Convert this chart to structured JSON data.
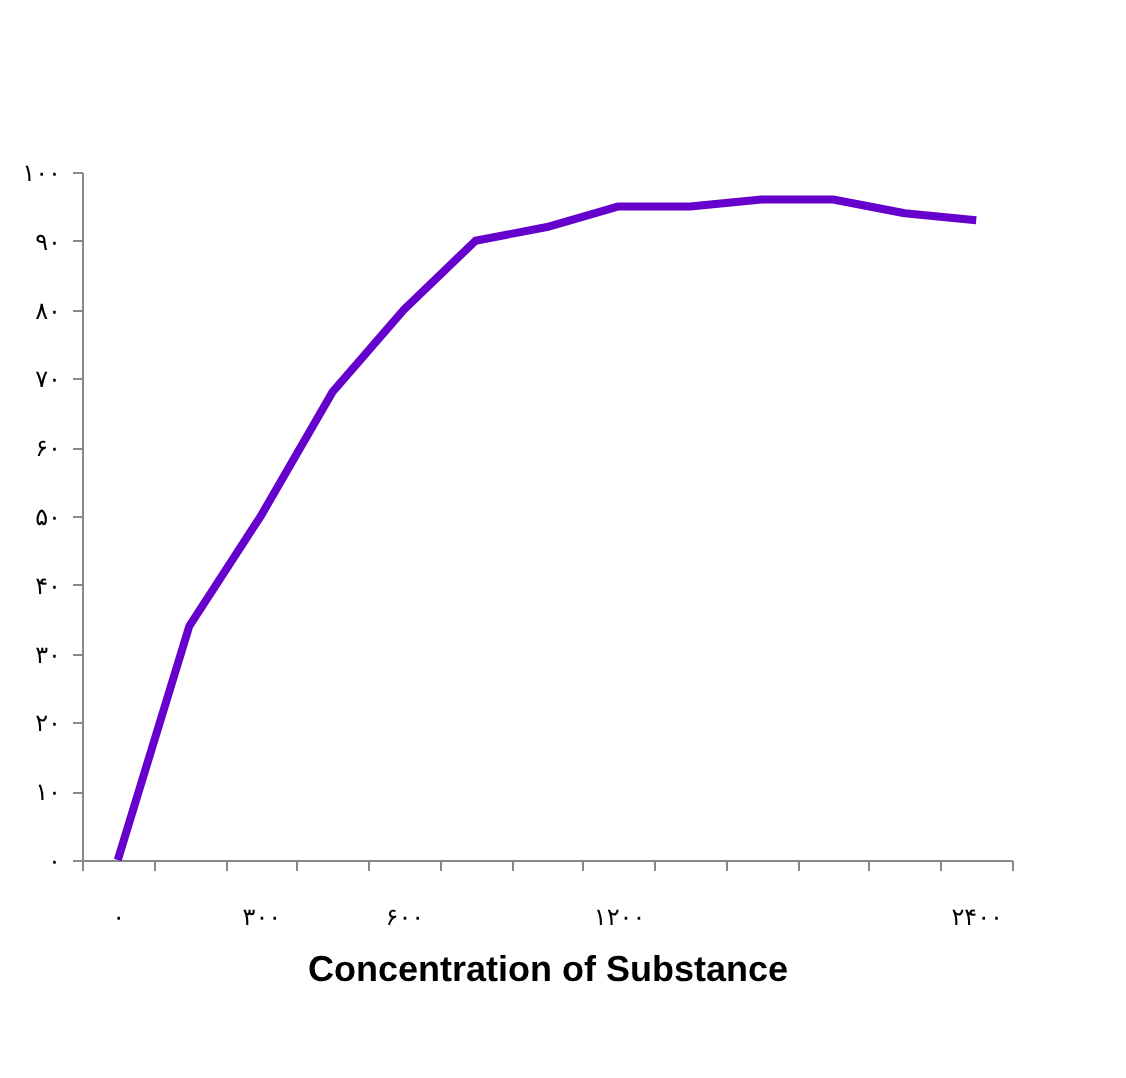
{
  "chart_data": {
    "type": "line",
    "xlabel": "Concentration of Substance",
    "categories": [
      "۰",
      null,
      "۳۰۰",
      null,
      "۶۰۰",
      null,
      null,
      "۱۲۰۰",
      null,
      null,
      null,
      null,
      "۲۴۰۰"
    ],
    "series": [
      {
        "color": "#6600cc",
        "values": [
          0,
          34,
          50,
          68,
          80,
          90,
          92,
          95,
          95,
          96,
          96,
          94,
          93
        ]
      }
    ],
    "ylim": [
      0,
      100
    ],
    "yticks": [
      {
        "value": 0,
        "label": "۰"
      },
      {
        "value": 10,
        "label": "۱۰"
      },
      {
        "value": 20,
        "label": "۲۰"
      },
      {
        "value": 30,
        "label": "۳۰"
      },
      {
        "value": 40,
        "label": "۴۰"
      },
      {
        "value": 50,
        "label": "۵۰"
      },
      {
        "value": 60,
        "label": "۶۰"
      },
      {
        "value": 70,
        "label": "۷۰"
      },
      {
        "value": 80,
        "label": "۸۰"
      },
      {
        "value": 90,
        "label": "۹۰"
      },
      {
        "value": 100,
        "label": "۱۰۰"
      }
    ],
    "grid": false,
    "marker": "none",
    "line_style": "solid"
  }
}
